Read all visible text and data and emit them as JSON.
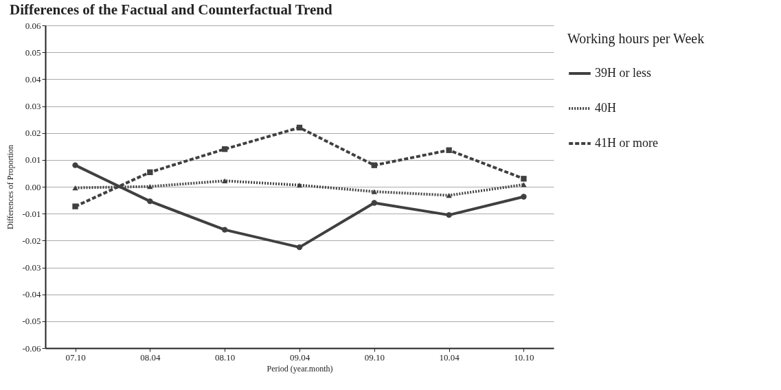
{
  "chart_data": {
    "type": "line",
    "title": "Differences of the Factual and Counterfactual Trend",
    "xlabel": "Period (year.month)",
    "ylabel": "Differences of Proportion",
    "legend_title": "Working hours per Week",
    "categories": [
      "07.10",
      "08.04",
      "08.10",
      "09.04",
      "09.10",
      "10.04",
      "10.10"
    ],
    "series": [
      {
        "name": "39H or less",
        "color": "#404040",
        "marker": "circle",
        "line_style": "solid",
        "values": [
          0.008,
          -0.0054,
          -0.016,
          -0.0225,
          -0.006,
          -0.0105,
          -0.0037
        ]
      },
      {
        "name": "40H",
        "color": "#404040",
        "marker": "triangle",
        "line_style": "dotted",
        "values": [
          -0.0004,
          0.0001,
          0.0022,
          0.0006,
          -0.0018,
          -0.0032,
          0.0008
        ]
      },
      {
        "name": "41H or more",
        "color": "#404040",
        "marker": "square",
        "line_style": "dashed",
        "values": [
          -0.0073,
          0.0054,
          0.014,
          0.022,
          0.008,
          0.0136,
          0.003
        ]
      }
    ],
    "ylim": [
      -0.06,
      0.06
    ],
    "yticks": [
      -0.06,
      -0.05,
      -0.04,
      -0.03,
      -0.02,
      -0.01,
      {
        "value": 0,
        "label": "0.00"
      },
      0.01,
      0.02,
      0.03,
      0.04,
      0.05,
      0.06
    ],
    "grid": "y",
    "legend": "right"
  }
}
